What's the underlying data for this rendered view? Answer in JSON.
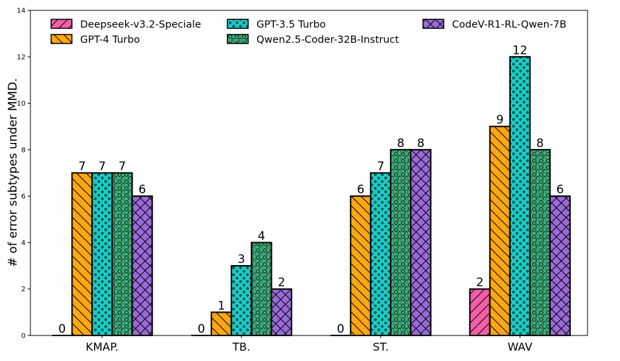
{
  "chart_data": {
    "type": "bar",
    "ylabel": "# of error subtypes under MMD.",
    "xlabel": "",
    "ylim": [
      0,
      14
    ],
    "yticks": [
      "0",
      "2",
      "4",
      "6",
      "8",
      "10",
      "12",
      "14"
    ],
    "categories": [
      "KMAP.",
      "TB.",
      "ST.",
      "WAV"
    ],
    "series": [
      {
        "name": "Deepseek-v3.2-Speciale",
        "values": [
          0,
          0,
          0,
          2
        ],
        "color": "#f55fa6",
        "pattern": "diag-fwd"
      },
      {
        "name": "GPT-4 Turbo",
        "values": [
          7,
          1,
          6,
          9
        ],
        "color": "#ffa70f",
        "pattern": "diag-back"
      },
      {
        "name": "GPT-3.5 Turbo",
        "values": [
          7,
          3,
          7,
          12
        ],
        "color": "#1ccbc5",
        "pattern": "dots"
      },
      {
        "name": "Qwen2.5-Coder-32B-Instruct",
        "values": [
          7,
          4,
          8,
          8
        ],
        "color": "#3ead7a",
        "pattern": "circles"
      },
      {
        "name": "CodeV-R1-RL-Qwen-7B",
        "values": [
          6,
          2,
          8,
          6
        ],
        "color": "#9a6ad8",
        "pattern": "cross"
      }
    ],
    "legend_position": "top",
    "grid": false
  }
}
